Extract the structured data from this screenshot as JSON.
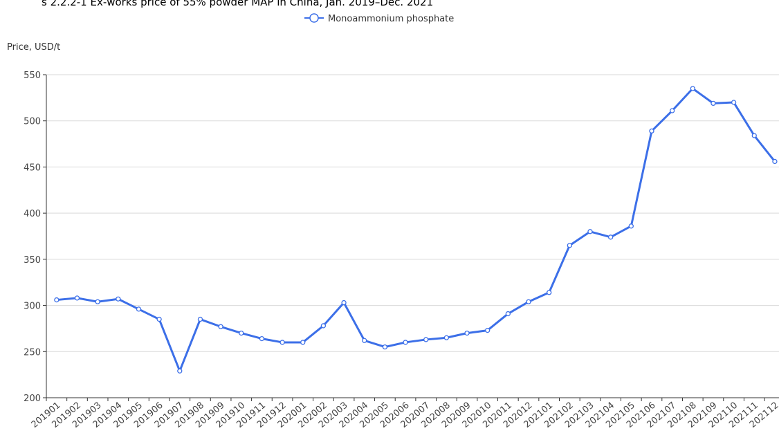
{
  "chart_data": {
    "type": "line",
    "title": "s 2.2.2-1 Ex-works price of 55% powder MAP in China, Jan. 2019–Dec. 2021",
    "y_label": "Price, USD/t",
    "categories": [
      "201901",
      "201902",
      "201903",
      "201904",
      "201905",
      "201906",
      "201907",
      "201908",
      "201909",
      "201910",
      "201911",
      "201912",
      "202001",
      "202002",
      "202003",
      "202004",
      "202005",
      "202006",
      "202007",
      "202008",
      "202009",
      "202010",
      "202011",
      "202012",
      "202101",
      "202102",
      "202103",
      "202104",
      "202105",
      "202106",
      "202107",
      "202108",
      "202109",
      "202110",
      "202111",
      "202112"
    ],
    "series": [
      {
        "name": "Monoammonium phosphate",
        "color": "#3c6fe8",
        "values": [
          306,
          308,
          304,
          307,
          296,
          285,
          229,
          285,
          277,
          270,
          264,
          260,
          260,
          278,
          303,
          262,
          255,
          260,
          263,
          265,
          270,
          273,
          291,
          304,
          314,
          365,
          380,
          374,
          386,
          489,
          511,
          535,
          519,
          520,
          484,
          456
        ]
      }
    ],
    "ylim": [
      200,
      550
    ],
    "yticks": [
      200,
      250,
      300,
      350,
      400,
      450,
      500,
      550
    ],
    "grid": true,
    "legend": "top"
  }
}
